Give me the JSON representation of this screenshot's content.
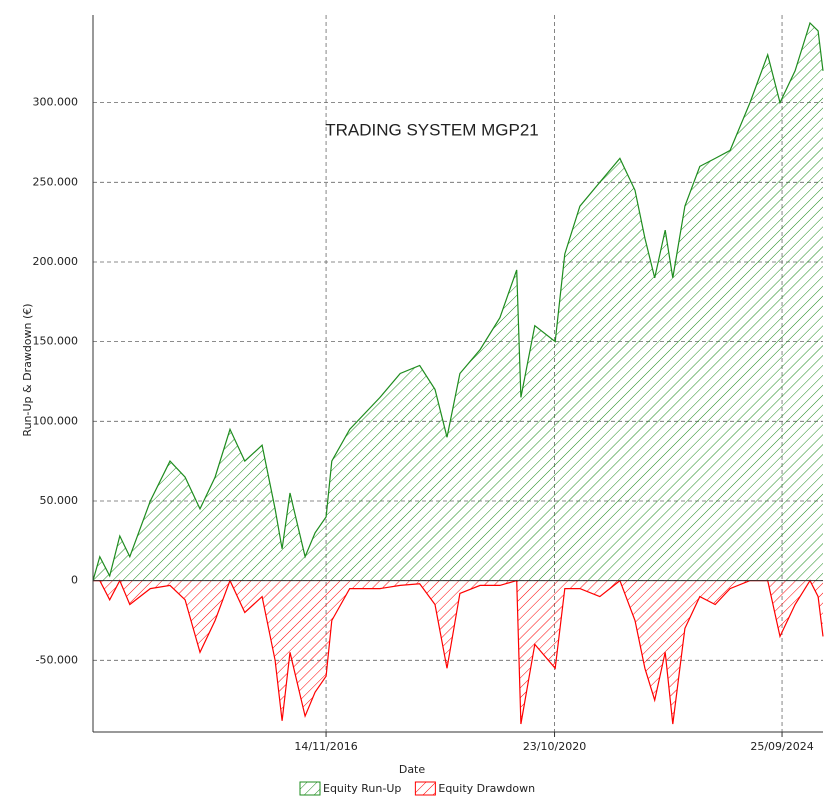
{
  "chart_data": {
    "type": "area",
    "title": "TRADING SYSTEM MGP21",
    "x_label": "Date",
    "y_label": "Run-Up & Drawdown (€)",
    "x": [
      "07/11/2012",
      "20/12/2012",
      "20/02/2013",
      "25/04/2013",
      "27/06/2013",
      "03/11/2013",
      "07/03/2014",
      "10/06/2014",
      "12/09/2014",
      "16/12/2014",
      "20/03/2015",
      "21/06/2015",
      "08/10/2015",
      "29/12/2015",
      "11/02/2016",
      "01/04/2016",
      "05/07/2016",
      "06/09/2016",
      "14/11/2016",
      "20/12/2016",
      "12/04/2017",
      "20/10/2017",
      "24/02/2018",
      "27/06/2018",
      "01/10/2018",
      "16/12/2018",
      "07/03/2019",
      "12/07/2019",
      "14/11/2019",
      "28/02/2020",
      "25/03/2020",
      "21/06/2020",
      "27/10/2020",
      "27/12/2020",
      "01/04/2021",
      "04/08/2021",
      "09/12/2021",
      "14/03/2022",
      "15/05/2022",
      "16/07/2022",
      "20/09/2022",
      "07/11/2022",
      "22/01/2023",
      "26/04/2023",
      "01/08/2023",
      "03/11/2023",
      "07/03/2024",
      "27/06/2024",
      "12/09/2024",
      "16/12/2024",
      "20/03/2025",
      "10/05/2025",
      "10/06/2025"
    ],
    "series": [
      {
        "name": "Equity Run-Up",
        "color": "#1e8c1e",
        "values": [
          0,
          15000,
          3000,
          28000,
          15000,
          50000,
          75000,
          65000,
          45000,
          65000,
          95000,
          75000,
          85000,
          45000,
          20000,
          55000,
          15000,
          30000,
          40000,
          75000,
          95000,
          115000,
          130000,
          135000,
          120000,
          90000,
          130000,
          145000,
          165000,
          195000,
          115000,
          160000,
          150000,
          205000,
          235000,
          250000,
          265000,
          245000,
          215000,
          190000,
          220000,
          190000,
          235000,
          260000,
          265000,
          270000,
          300000,
          330000,
          300000,
          320000,
          350000,
          345000,
          320000
        ]
      },
      {
        "name": "Equity Drawdown",
        "color": "#ff0000",
        "values": [
          0,
          0,
          -12000,
          0,
          -15000,
          -5000,
          -3000,
          -12000,
          -45000,
          -25000,
          0,
          -20000,
          -10000,
          -50000,
          -88000,
          -45000,
          -85000,
          -70000,
          -60000,
          -25000,
          -5000,
          -5000,
          -3000,
          -2000,
          -15000,
          -55000,
          -8000,
          -3000,
          -3000,
          0,
          -90000,
          -40000,
          -55000,
          -5000,
          -5000,
          -10000,
          0,
          -25000,
          -55000,
          -75000,
          -45000,
          -90000,
          -30000,
          -10000,
          -15000,
          -5000,
          0,
          0,
          -35000,
          -15000,
          0,
          -10000,
          -35000
        ]
      }
    ],
    "xlim": [
      "07/11/2012",
      "10/06/2025"
    ],
    "xticks": [
      "14/11/2016",
      "23/10/2020",
      "25/09/2024"
    ],
    "ylim": [
      -95000,
      355000
    ],
    "yticks": [
      {
        "value": -50000,
        "label": "-50.000"
      },
      0,
      {
        "value": 50000,
        "label": "50.000"
      },
      {
        "value": 100000,
        "label": "100.000"
      },
      {
        "value": 150000,
        "label": "150.000"
      },
      {
        "value": 200000,
        "label": "200.000"
      },
      {
        "value": 250000,
        "label": "250.000"
      },
      {
        "value": 300000,
        "label": "300.000"
      }
    ],
    "grid": true
  }
}
